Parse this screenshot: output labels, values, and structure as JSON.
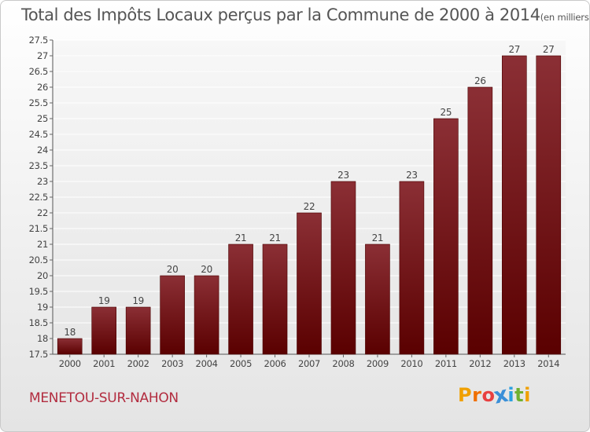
{
  "chart_data": {
    "type": "bar",
    "title": "Total des Impôts Locaux perçus par la Commune de 2000 à 2014",
    "subtitle": "(en milliers d'€)",
    "categories": [
      "2000",
      "2001",
      "2002",
      "2003",
      "2004",
      "2005",
      "2006",
      "2007",
      "2008",
      "2009",
      "2010",
      "2011",
      "2012",
      "2013",
      "2014"
    ],
    "values": [
      18,
      19,
      19,
      20,
      20,
      21,
      21,
      22,
      23,
      21,
      23,
      25,
      26,
      27,
      27
    ],
    "value_labels": [
      "18",
      "19",
      "19",
      "20",
      "20",
      "21",
      "21",
      "22",
      "23",
      "21",
      "23",
      "25",
      "26",
      "27",
      "27"
    ],
    "ylim": [
      17.5,
      27.5
    ],
    "yticks": [
      17.5,
      18,
      18.5,
      19,
      19.5,
      20,
      20.5,
      21,
      21.5,
      22,
      22.5,
      23,
      23.5,
      24,
      24.5,
      25,
      25.5,
      26,
      26.5,
      27,
      27.5
    ],
    "ytick_labels": [
      "17.5",
      "18",
      "18.5",
      "19",
      "19.5",
      "20",
      "20.5",
      "21",
      "21.5",
      "22",
      "22.5",
      "23",
      "23.5",
      "24",
      "24.5",
      "25",
      "25.5",
      "26",
      "26.5",
      "27",
      "27.5"
    ],
    "xlabel": "",
    "ylabel": "",
    "grid": true,
    "bar_color_top": "#8b2f35",
    "bar_color_bottom": "#5a0000"
  },
  "footer": {
    "commune": "MENETOU-SUR-NAHON",
    "brand_letters": [
      "P",
      "r",
      "o",
      "x",
      "i",
      "t",
      "i"
    ],
    "brand_colors": [
      "#f0a000",
      "#f07000",
      "#e84040",
      "#3a8fd8",
      "#2aa0e0",
      "#70b030",
      "#f0a000"
    ]
  }
}
